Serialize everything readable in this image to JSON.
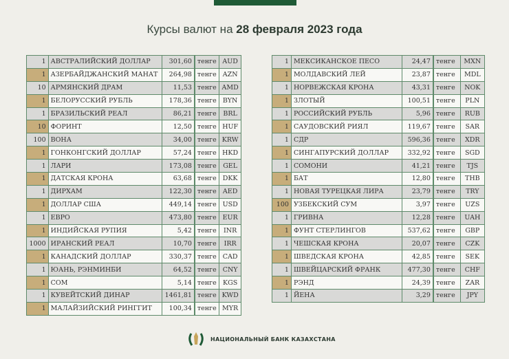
{
  "header": {
    "title_prefix": "Курсы валют на ",
    "title_date": "28 февраля 2023 года"
  },
  "unit": "тенге",
  "left_table": [
    [
      "1",
      "АВСТРАЛИЙСКИЙ ДОЛЛАР",
      "301,60",
      "AUD"
    ],
    [
      "1",
      "АЗЕРБАЙДЖАНСКИЙ МАНАТ",
      "264,98",
      "AZN"
    ],
    [
      "10",
      "АРМЯНСКИЙ  ДРАМ",
      "11,53",
      "AMD"
    ],
    [
      "1",
      "БЕЛОРУССКИЙ РУБЛЬ",
      "178,36",
      "BYN"
    ],
    [
      "1",
      "БРАЗИЛЬСКИЙ РЕАЛ",
      "86,21",
      "BRL"
    ],
    [
      "10",
      "ФОРИНТ",
      "12,50",
      "HUF"
    ],
    [
      "100",
      "ВОНА",
      "34,00",
      "KRW"
    ],
    [
      "1",
      "ГОНКОНГСКИЙ ДОЛЛАР",
      "57,24",
      "HKD"
    ],
    [
      "1",
      "ЛАРИ",
      "173,08",
      "GEL"
    ],
    [
      "1",
      "ДАТСКАЯ КРОНА",
      "63,68",
      "DKK"
    ],
    [
      "1",
      "ДИРХАМ",
      "122,30",
      "AED"
    ],
    [
      "1",
      "ДОЛЛАР США",
      "449,14",
      "USD"
    ],
    [
      "1",
      "ЕВРО",
      "473,80",
      "EUR"
    ],
    [
      "1",
      "ИНДИЙСКАЯ РУПИЯ",
      "5,42",
      "INR"
    ],
    [
      "1000",
      "ИРАНСКИЙ РЕАЛ",
      "10,70",
      "IRR"
    ],
    [
      "1",
      "КАНАДСКИЙ ДОЛЛАР",
      "330,37",
      "CAD"
    ],
    [
      "1",
      "ЮАНЬ, РЭНМИНБИ",
      "64,52",
      "CNY"
    ],
    [
      "1",
      "СОМ",
      "5,14",
      "KGS"
    ],
    [
      "1",
      "КУВЕЙТСКИЙ ДИНАР",
      "1461,81",
      "KWD"
    ],
    [
      "1",
      "МАЛАЙЗИЙСКИЙ РИНГГИТ",
      "100,34",
      "MYR"
    ]
  ],
  "right_table": [
    [
      "1",
      "МЕКСИКАНСКОЕ ПЕСО",
      "24,47",
      "MXN"
    ],
    [
      "1",
      "МОЛДАВСКИЙ ЛЕЙ",
      "23,87",
      "MDL"
    ],
    [
      "1",
      "НОРВЕЖСКАЯ КРОНА",
      "43,31",
      "NOK"
    ],
    [
      "1",
      "ЗЛОТЫЙ",
      "100,51",
      "PLN"
    ],
    [
      "1",
      "РОССИЙСКИЙ РУБЛЬ",
      "5,96",
      "RUB"
    ],
    [
      "1",
      "САУДОВСКИЙ РИЯЛ",
      "119,67",
      "SAR"
    ],
    [
      "1",
      "СДР",
      "596,36",
      "XDR"
    ],
    [
      "1",
      "СИНГАПУРСКИЙ ДОЛЛАР",
      "332,92",
      "SGD"
    ],
    [
      "1",
      "СОМОНИ",
      "41,21",
      "TJS"
    ],
    [
      "1",
      "БАТ",
      "12,80",
      "THB"
    ],
    [
      "1",
      "НОВАЯ ТУРЕЦКАЯ ЛИРА",
      "23,79",
      "TRY"
    ],
    [
      "100",
      "УЗБЕКСКИЙ СУМ",
      "3,97",
      "UZS"
    ],
    [
      "1",
      "ГРИВНА",
      "12,28",
      "UAH"
    ],
    [
      "1",
      "ФУНТ СТЕРЛИНГОВ",
      "537,62",
      "GBP"
    ],
    [
      "1",
      "ЧЕШСКАЯ КРОНА",
      "20,07",
      "CZK"
    ],
    [
      "1",
      "ШВЕДСКАЯ КРОНА",
      "42,85",
      "SEK"
    ],
    [
      "1",
      "ШВЕЙЦАРСКИЙ ФРАНК",
      "477,30",
      "CHF"
    ],
    [
      "1",
      "РЭНД",
      "24,39",
      "ZAR"
    ],
    [
      "1",
      "ЙЕНА",
      "3,29",
      "JPY"
    ]
  ],
  "footer": {
    "bank_name": "НАЦИОНАЛЬНЫЙ БАНК КАЗАХСТАНА",
    "logo_icon": "bank-emblem-icon"
  },
  "colors": {
    "brand_green": "#1f5a36",
    "gold": "#c7ad7b",
    "row_grey": "#d9d9d7"
  }
}
